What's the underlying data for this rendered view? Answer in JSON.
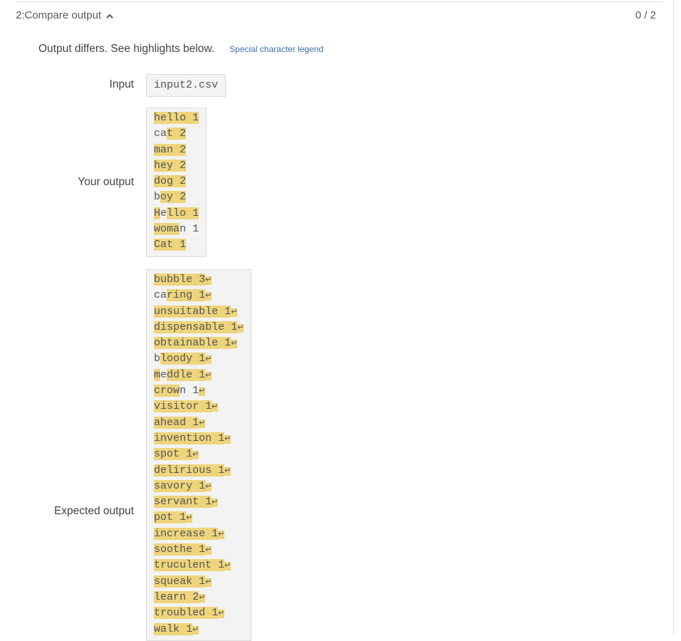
{
  "test": {
    "title": "2:Compare output",
    "score": "0 / 2"
  },
  "summary": {
    "message": "Output differs. See highlights below.",
    "legend_link": "Special character legend"
  },
  "labels": {
    "input": "Input",
    "your_output": "Your output",
    "expected_output": "Expected output"
  },
  "input_value": "input2.csv",
  "your_output_lines": [
    "hello 1",
    "cat 2",
    "man 2",
    "hey 2",
    "dog 2",
    "boy 2",
    "Hello 1",
    "woman 1",
    "Cat 1"
  ],
  "expected_output_lines": [
    "bubble 3",
    "caring 1",
    "unsuitable 1",
    "dispensable 1",
    "obtainable 1",
    "bloody 1",
    "meddle 1",
    "crown 1",
    "visitor 1",
    "ahead 1",
    "invention 1",
    "spot 1",
    "delirious 1",
    "savory 1",
    "servant 1",
    "pot 1",
    "increase 1",
    "soothe 1",
    "truculent 1",
    "squeak 1",
    "learn 2",
    "troubled 1",
    "walk 1"
  ],
  "colors": {
    "highlight": "#eed47b",
    "link": "#3d6fb5",
    "code_bg": "#f3f3f3"
  },
  "newline_glyph": "↵"
}
